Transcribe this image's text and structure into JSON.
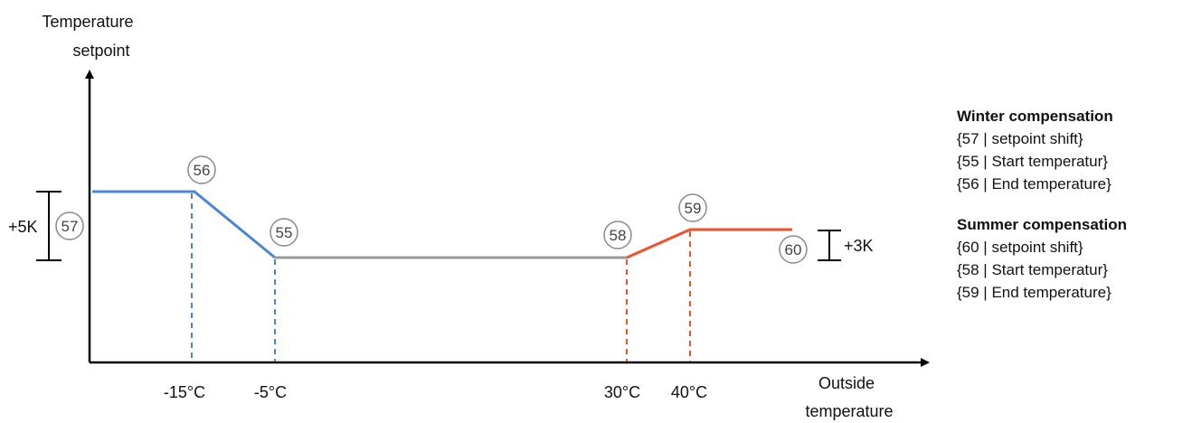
{
  "y_axis_label": [
    "Temperature",
    "setpoint"
  ],
  "x_axis_label": [
    "Outside",
    "temperature"
  ],
  "x_ticks": [
    "-15°C",
    "-5°C",
    "30°C",
    "40°C"
  ],
  "markers": [
    "56",
    "55",
    "57",
    "58",
    "59",
    "60"
  ],
  "shift_labels": {
    "winter": "+5K",
    "summer": "+3K"
  },
  "legend": {
    "winter_title": "Winter compensation",
    "winter_items": [
      "{57 | setpoint shift}",
      "{55 | Start temperatur}",
      "{56 | End temperature}"
    ],
    "summer_title": "Summer compensation",
    "summer_items": [
      "{60 | setpoint shift}",
      "{58 | Start temperatur}",
      "{59 | End temperature}"
    ]
  },
  "colors": {
    "winter": "#4a86d4",
    "neutral": "#999999",
    "summer": "#f0502a",
    "axis": "#000000",
    "marker_border": "#8a8a8a"
  }
}
